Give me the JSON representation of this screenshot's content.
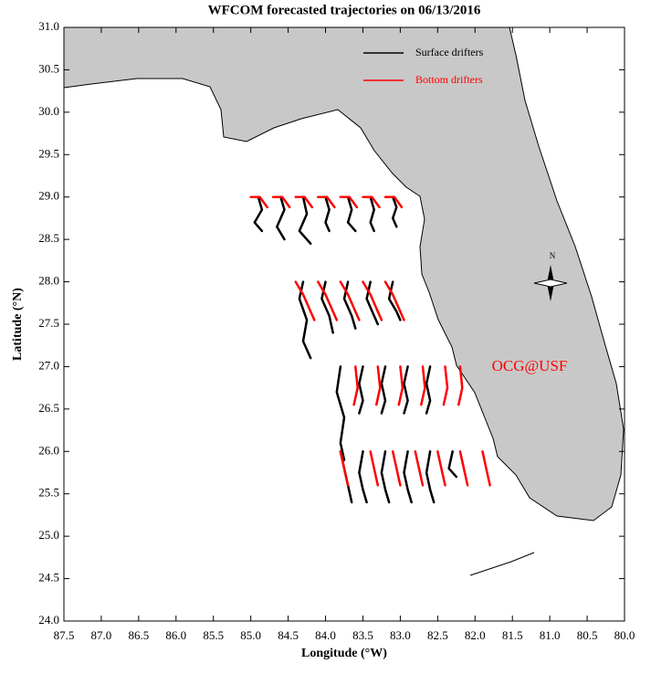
{
  "chart_data": {
    "type": "trajectory",
    "title": "WFCOM forecasted trajectories on 06/13/2016",
    "xlabel": "Longitude (°W)",
    "ylabel": "Latitude (°N)",
    "annotations": [
      "OCG@USF"
    ],
    "compass_label": "N",
    "legend": "upper right",
    "xlim": [
      87.5,
      80.0
    ],
    "xticks": [
      87.5,
      {
        "value": 87,
        "label": "87.0"
      },
      86.5,
      {
        "value": 86,
        "label": "86.0"
      },
      85.5,
      {
        "value": 85,
        "label": "85.0"
      },
      84.5,
      {
        "value": 84,
        "label": "84.0"
      },
      83.5,
      {
        "value": 83,
        "label": "83.0"
      },
      82.5,
      {
        "value": 82,
        "label": "82.0"
      },
      81.5,
      {
        "value": 81,
        "label": "81.0"
      },
      80.5,
      {
        "value": 80,
        "label": "80.0"
      }
    ],
    "ylim": [
      24.0,
      31.0
    ],
    "yticks": [
      {
        "value": 24,
        "label": "24.0"
      },
      24.5,
      {
        "value": 25,
        "label": "25.0"
      },
      25.5,
      {
        "value": 26,
        "label": "26.0"
      },
      26.5,
      {
        "value": 27,
        "label": "27.0"
      },
      27.5,
      {
        "value": 28,
        "label": "28.0"
      },
      28.5,
      {
        "value": 29,
        "label": "29.0"
      },
      29.5,
      {
        "value": 30,
        "label": "30.0"
      },
      30.5,
      {
        "value": 31,
        "label": "31.0"
      }
    ],
    "series": [
      {
        "name": "Surface drifters",
        "color": "#000000",
        "x": [
          84.9,
          84.85,
          84.95,
          84.85,
          null,
          84.6,
          84.55,
          84.65,
          84.55,
          null,
          84.3,
          84.25,
          84.35,
          84.2,
          null,
          84.0,
          83.95,
          84.0,
          83.95,
          null,
          83.7,
          83.65,
          83.7,
          83.6,
          null,
          83.4,
          83.35,
          83.4,
          83.35,
          null,
          83.1,
          83.05,
          83.1,
          83.05,
          null,
          84.3,
          84.35,
          84.25,
          84.3,
          84.2,
          null,
          84.0,
          84.05,
          83.95,
          83.9,
          null,
          83.7,
          83.75,
          83.65,
          83.6,
          null,
          83.4,
          83.45,
          83.35,
          83.3,
          null,
          83.1,
          83.15,
          83.05,
          83.0,
          null,
          83.8,
          83.85,
          83.75,
          83.8,
          83.75,
          null,
          83.5,
          83.55,
          83.5,
          83.55,
          null,
          83.2,
          83.25,
          83.2,
          83.25,
          null,
          82.9,
          82.95,
          82.9,
          82.95,
          null,
          82.6,
          82.65,
          82.6,
          82.65,
          null,
          83.8,
          83.75,
          83.7,
          83.65,
          null,
          83.5,
          83.55,
          83.5,
          83.45,
          null,
          83.2,
          83.25,
          83.2,
          83.15,
          null,
          82.9,
          82.95,
          82.9,
          82.85,
          null,
          82.6,
          82.65,
          82.6,
          82.55,
          null,
          82.3,
          82.35,
          82.25
        ],
        "y": [
          29,
          28.85,
          28.7,
          28.6,
          null,
          29,
          28.85,
          28.65,
          28.5,
          null,
          29,
          28.8,
          28.6,
          28.45,
          null,
          29,
          28.85,
          28.7,
          28.6,
          null,
          29,
          28.85,
          28.7,
          28.6,
          null,
          29,
          28.85,
          28.7,
          28.6,
          null,
          29,
          28.88,
          28.75,
          28.65,
          null,
          28,
          27.8,
          27.55,
          27.3,
          27.1,
          null,
          28,
          27.8,
          27.6,
          27.4,
          null,
          28,
          27.8,
          27.6,
          27.45,
          null,
          28,
          27.8,
          27.6,
          27.5,
          null,
          28,
          27.8,
          27.65,
          27.55,
          null,
          27,
          26.7,
          26.4,
          26.1,
          25.9,
          null,
          27,
          26.8,
          26.6,
          26.45,
          null,
          27,
          26.8,
          26.6,
          26.45,
          null,
          27,
          26.8,
          26.6,
          26.45,
          null,
          27,
          26.8,
          26.6,
          26.45,
          null,
          26,
          25.8,
          25.6,
          25.4,
          null,
          26,
          25.75,
          25.55,
          25.4,
          null,
          26,
          25.75,
          25.55,
          25.4,
          null,
          26,
          25.75,
          25.55,
          25.4,
          null,
          26,
          25.75,
          25.55,
          25.4,
          null,
          26,
          25.8,
          25.7
        ]
      },
      {
        "name": "Bottom drifters",
        "color": "#ff0000",
        "x": [
          85.0,
          84.88,
          84.78,
          null,
          84.7,
          84.58,
          84.48,
          null,
          84.4,
          84.28,
          84.18,
          null,
          84.1,
          83.98,
          83.88,
          null,
          83.8,
          83.68,
          83.58,
          null,
          83.5,
          83.38,
          83.28,
          null,
          83.2,
          83.08,
          82.98,
          null,
          84.4,
          84.3,
          84.2,
          84.15,
          null,
          84.1,
          84.0,
          83.9,
          83.85,
          null,
          83.8,
          83.7,
          83.6,
          83.55,
          null,
          83.5,
          83.4,
          83.3,
          83.25,
          null,
          83.2,
          83.1,
          83.0,
          82.95,
          null,
          83.6,
          83.57,
          83.62,
          null,
          83.3,
          83.27,
          83.32,
          null,
          83.0,
          82.97,
          83.02,
          null,
          82.7,
          82.67,
          82.72,
          null,
          82.4,
          82.37,
          82.42,
          null,
          82.2,
          82.17,
          82.22,
          null,
          83.8,
          83.75,
          83.7,
          null,
          83.4,
          83.35,
          83.3,
          null,
          83.1,
          83.05,
          83.0,
          null,
          82.8,
          82.75,
          82.7,
          null,
          82.5,
          82.45,
          82.4,
          null,
          82.2,
          82.15,
          82.1,
          null,
          81.9,
          81.85,
          81.8
        ],
        "y": [
          29,
          29,
          28.88,
          null,
          29,
          29,
          28.88,
          null,
          29,
          29,
          28.88,
          null,
          29,
          29,
          28.88,
          null,
          29,
          29,
          28.88,
          null,
          29,
          29,
          28.88,
          null,
          29,
          29,
          28.88,
          null,
          28,
          27.85,
          27.65,
          27.55,
          null,
          28,
          27.85,
          27.65,
          27.55,
          null,
          28,
          27.85,
          27.65,
          27.55,
          null,
          28,
          27.85,
          27.65,
          27.55,
          null,
          28,
          27.85,
          27.65,
          27.55,
          null,
          27,
          26.75,
          26.55,
          null,
          27,
          26.75,
          26.55,
          null,
          27,
          26.75,
          26.55,
          null,
          27,
          26.75,
          26.55,
          null,
          27,
          26.75,
          26.55,
          null,
          27,
          26.75,
          26.55,
          null,
          26,
          25.8,
          25.6,
          null,
          26,
          25.8,
          25.6,
          null,
          26,
          25.8,
          25.6,
          null,
          26,
          25.8,
          25.6,
          null,
          26,
          25.8,
          25.6,
          null,
          26,
          25.8,
          25.6,
          null,
          26,
          25.8,
          25.6
        ]
      }
    ]
  }
}
